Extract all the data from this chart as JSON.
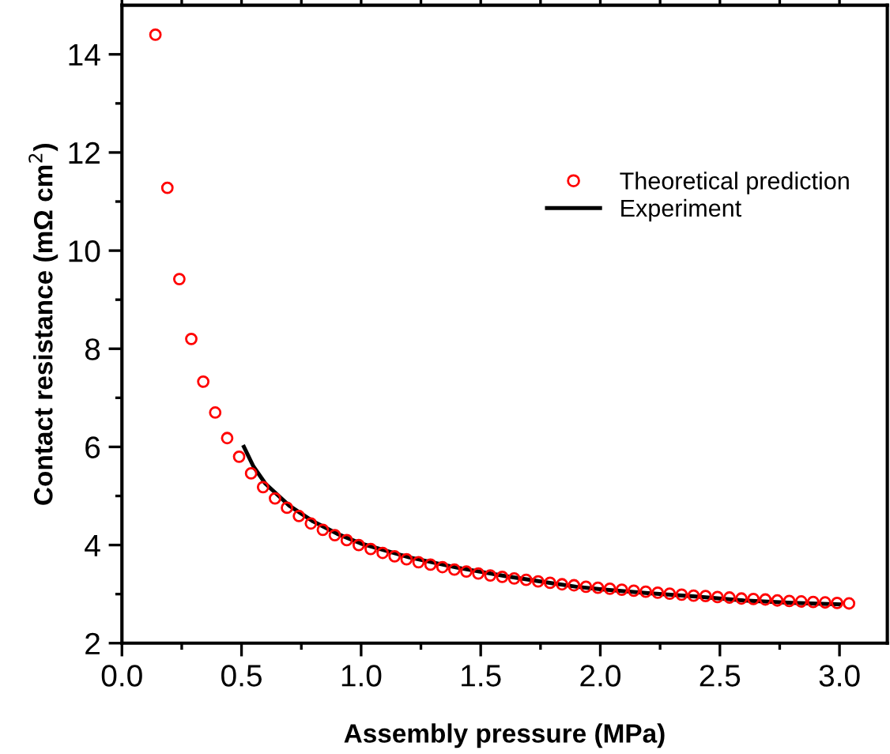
{
  "chart_data": {
    "type": "scatter",
    "xlabel": "Assembly pressure (MPa)",
    "ylabel": "Contact resistance (mΩ cm$^{2}$)",
    "xlim": [
      0,
      3.2
    ],
    "xticks": [
      {
        "value": 0,
        "label": "0.0"
      },
      0.5,
      {
        "value": 1,
        "label": "1.0"
      },
      1.5,
      {
        "value": 2,
        "label": "2.0"
      },
      2.5,
      {
        "value": 3,
        "label": "3.0"
      }
    ],
    "ylim": [
      2,
      15
    ],
    "yticks": [
      2,
      4,
      6,
      8,
      10,
      12,
      14
    ],
    "grid": false,
    "legend": "right",
    "marker": "circle",
    "series": [
      {
        "name": "Theoretical prediction",
        "color": "#ff0000",
        "x": [
          0.14,
          0.19,
          0.24,
          0.29,
          0.34,
          0.39,
          0.44,
          0.49,
          0.54,
          0.59,
          0.64,
          0.69,
          0.74,
          0.79,
          0.84,
          0.89,
          0.94,
          0.99,
          1.04,
          1.09,
          1.14,
          1.19,
          1.24,
          1.29,
          1.34,
          1.39,
          1.44,
          1.49,
          1.54,
          1.59,
          1.64,
          1.69,
          1.74,
          1.79,
          1.84,
          1.89,
          1.94,
          1.99,
          2.04,
          2.09,
          2.14,
          2.19,
          2.24,
          2.29,
          2.34,
          2.39,
          2.44,
          2.49,
          2.54,
          2.59,
          2.64,
          2.69,
          2.74,
          2.79,
          2.84,
          2.89,
          2.94,
          2.99,
          3.04
        ],
        "values": [
          14.4,
          11.28,
          9.42,
          8.2,
          7.33,
          6.7,
          6.18,
          5.8,
          5.46,
          5.18,
          4.95,
          4.76,
          4.59,
          4.44,
          4.31,
          4.2,
          4.1,
          4.0,
          3.92,
          3.84,
          3.77,
          3.71,
          3.65,
          3.6,
          3.55,
          3.5,
          3.46,
          3.42,
          3.38,
          3.35,
          3.32,
          3.29,
          3.26,
          3.23,
          3.2,
          3.18,
          3.15,
          3.13,
          3.11,
          3.09,
          3.07,
          3.05,
          3.03,
          3.01,
          2.99,
          2.97,
          2.96,
          2.94,
          2.93,
          2.91,
          2.9,
          2.89,
          2.87,
          2.86,
          2.85,
          2.84,
          2.83,
          2.82,
          2.81
        ]
      },
      {
        "name": "Experiment",
        "type": "line",
        "color": "#000000",
        "marker": "none",
        "line_style": "solid",
        "x": [
          0.51,
          0.55,
          0.6,
          0.7,
          0.8,
          0.9,
          1.0,
          1.2,
          1.4,
          1.6,
          1.8,
          1.9,
          2.0,
          2.2,
          2.4,
          2.6,
          2.8,
          3.0
        ],
        "values": [
          6.0,
          5.6,
          5.25,
          4.8,
          4.48,
          4.23,
          4.03,
          3.75,
          3.54,
          3.37,
          3.22,
          3.15,
          3.1,
          3.02,
          2.95,
          2.87,
          2.82,
          2.79
        ]
      }
    ]
  }
}
